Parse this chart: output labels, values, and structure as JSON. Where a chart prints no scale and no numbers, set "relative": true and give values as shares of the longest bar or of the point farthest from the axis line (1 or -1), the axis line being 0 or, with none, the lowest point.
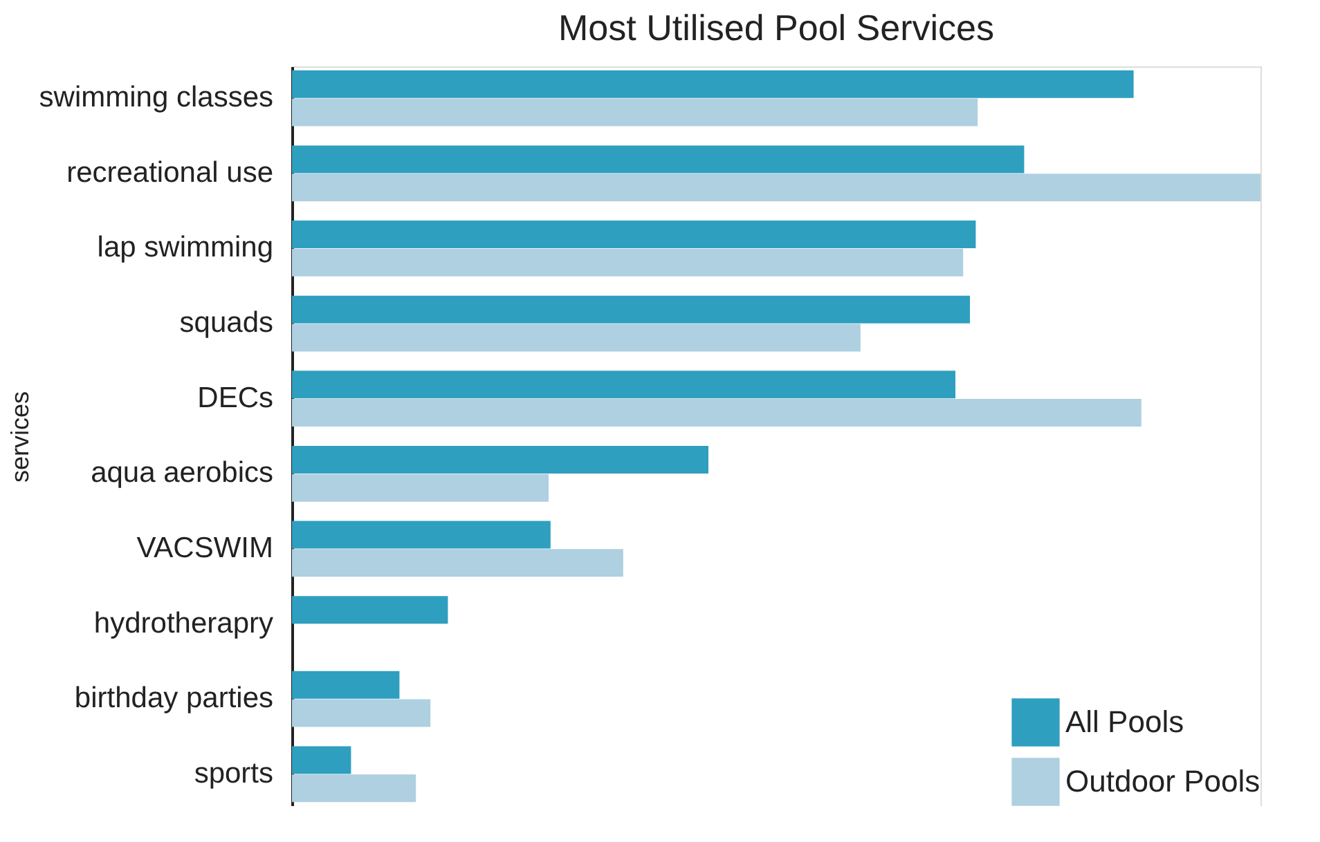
{
  "chart_data": {
    "type": "bar",
    "title": "Most Utilised Pool Services",
    "ylabel": "services",
    "orientation": "horizontal",
    "relative": true,
    "legend": "bottom right",
    "categories": [
      "swimming classes",
      "recreational use",
      "lap swimming",
      "squads",
      "DECs",
      "aqua aerobics",
      "VACSWIM",
      "hydrotherapry",
      "birthday parties",
      "sports"
    ],
    "series": [
      {
        "name": "All Pools",
        "color": "#2f9fc0",
        "values": [
          0.869,
          0.756,
          0.706,
          0.7,
          0.685,
          0.43,
          0.267,
          0.161,
          0.111,
          0.061
        ]
      },
      {
        "name": "Outdoor Pools",
        "color": "#aed0e0",
        "values": [
          0.708,
          1,
          0.693,
          0.587,
          0.877,
          0.265,
          0.342,
          null,
          0.143,
          0.128
        ]
      }
    ]
  }
}
